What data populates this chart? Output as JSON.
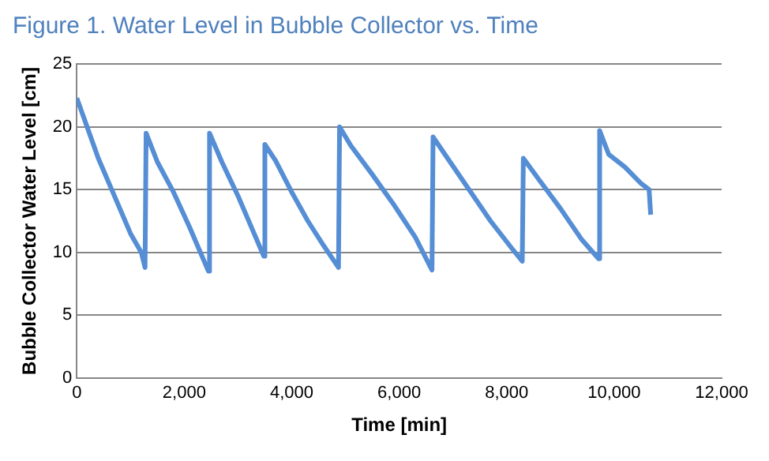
{
  "chart_data": {
    "type": "line",
    "title": "Figure 1. Water Level in Bubble Collector vs. Time",
    "xlabel": "Time [min]",
    "ylabel": "Bubble Collector Water Level [cm]",
    "x": [
      0,
      150,
      400,
      700,
      1000,
      1200,
      1270,
      1290,
      1500,
      1800,
      2100,
      2400,
      2450,
      2470,
      2700,
      3000,
      3300,
      3480,
      3500,
      3700,
      4000,
      4300,
      4600,
      4870,
      4890,
      5100,
      5500,
      5900,
      6300,
      6610,
      6630,
      6900,
      7300,
      7700,
      8100,
      8290,
      8310,
      8600,
      9000,
      9400,
      9710,
      9730,
      9900,
      10200,
      10500,
      10650,
      10680
    ],
    "series": [
      {
        "color": "#558ed5",
        "values": [
          22.3,
          20.5,
          17.5,
          14.5,
          11.5,
          10,
          8.8,
          19.5,
          17.2,
          14.8,
          12,
          9,
          8.5,
          19.5,
          17.2,
          14.5,
          11.5,
          9.7,
          18.6,
          17.3,
          14.8,
          12.5,
          10.5,
          8.8,
          20,
          18.5,
          16.2,
          13.8,
          11.2,
          8.6,
          19.2,
          17.5,
          15,
          12.5,
          10.3,
          9.3,
          17.5,
          15.8,
          13.5,
          11,
          9.5,
          19.7,
          17.8,
          16.8,
          15.5,
          15,
          13
        ]
      }
    ],
    "xlim": [
      0,
      12000
    ],
    "xticks": [
      {
        "value": 0,
        "label": "0"
      },
      {
        "value": 2000,
        "label": "2,000"
      },
      {
        "value": 4000,
        "label": "4,000"
      },
      {
        "value": 6000,
        "label": "6,000"
      },
      {
        "value": 8000,
        "label": "8,000"
      },
      {
        "value": 10000,
        "label": "10,000"
      },
      {
        "value": 12000,
        "label": "12,000"
      }
    ],
    "ylim": [
      0,
      25
    ],
    "yticks": [
      0,
      5,
      10,
      15,
      20,
      25
    ],
    "grid": "y",
    "legend": false,
    "marker": "none",
    "line_style": "solid"
  }
}
